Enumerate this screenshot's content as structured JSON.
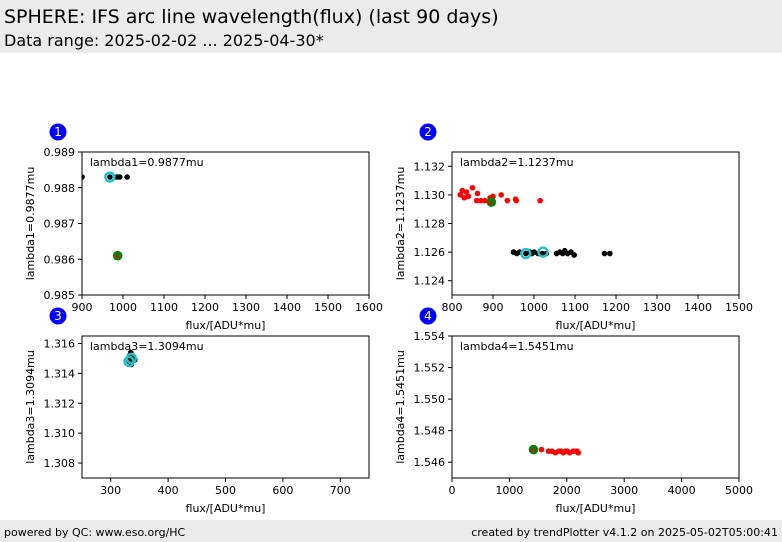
{
  "header": {
    "title": "SPHERE: IFS arc line wavelength(flux) (last 90 days)",
    "subtitle": "Data range: 2025-02-02 ... 2025-04-30*"
  },
  "footer": {
    "left": "powered by QC: www.eso.org/HC",
    "right": "created by trendPlotter v4.1.2 on 2025-05-02T05:00:41"
  },
  "colors": {
    "badge": "#0000ff",
    "black": "#000000",
    "red": "#ff0000",
    "cyan": "#20c0c8",
    "green": "#008000"
  },
  "chart_data": [
    {
      "type": "scatter",
      "badge": "1",
      "annotation": "lambda1=0.9877mu",
      "xlabel": "flux/[ADU*mu]",
      "ylabel": "lambda1=0.9877mu",
      "xlim": [
        900,
        1600
      ],
      "ylim": [
        0.985,
        0.989
      ],
      "xticks": [
        "900",
        "1000",
        "1100",
        "1200",
        "1300",
        "1400",
        "1500",
        "1600"
      ],
      "yticks": [
        "0.985",
        "0.986",
        "0.987",
        "0.988",
        "0.989"
      ],
      "series": [
        {
          "color": "black",
          "points": [
            [
              900,
              0.9883
            ],
            [
              968,
              0.9883
            ],
            [
              985,
              0.9883
            ],
            [
              992,
              0.9883
            ],
            [
              1010,
              0.9883
            ],
            [
              984,
              0.9861
            ]
          ]
        },
        {
          "color": "red",
          "points": [
            [
              985,
              0.9861
            ],
            [
              988,
              0.9861
            ]
          ]
        }
      ],
      "highlights": [
        {
          "style": "cyan-ring",
          "x": 968,
          "y": 0.9883
        },
        {
          "style": "green-dot",
          "x": 987,
          "y": 0.9861
        }
      ]
    },
    {
      "type": "scatter",
      "badge": "2",
      "annotation": "lambda2=1.1237mu",
      "xlabel": "flux/[ADU*mu]",
      "ylabel": "lambda2=1.1237mu",
      "xlim": [
        800,
        1500
      ],
      "ylim": [
        1.123,
        1.133
      ],
      "xticks": [
        "800",
        "900",
        "1000",
        "1100",
        "1200",
        "1300",
        "1400",
        "1500"
      ],
      "yticks": [
        "1.124",
        "1.126",
        "1.128",
        "1.130",
        "1.132"
      ],
      "series": [
        {
          "color": "red",
          "points": [
            [
              820,
              1.13
            ],
            [
              825,
              1.1303
            ],
            [
              830,
              1.1298
            ],
            [
              835,
              1.1302
            ],
            [
              840,
              1.1299
            ],
            [
              850,
              1.1305
            ],
            [
              860,
              1.1296
            ],
            [
              862,
              1.1301
            ],
            [
              870,
              1.1296
            ],
            [
              880,
              1.1296
            ],
            [
              893,
              1.1298
            ],
            [
              900,
              1.1299
            ],
            [
              920,
              1.13
            ],
            [
              935,
              1.1296
            ],
            [
              955,
              1.1297
            ],
            [
              957,
              1.1296
            ],
            [
              1015,
              1.1296
            ]
          ]
        },
        {
          "color": "black",
          "points": [
            [
              950,
              1.126
            ],
            [
              958,
              1.1259
            ],
            [
              965,
              1.126
            ],
            [
              980,
              1.1259
            ],
            [
              990,
              1.126
            ],
            [
              995,
              1.1259
            ],
            [
              1000,
              1.126
            ],
            [
              1010,
              1.1259
            ],
            [
              1020,
              1.1259
            ],
            [
              1030,
              1.1259
            ],
            [
              1055,
              1.1259
            ],
            [
              1063,
              1.126
            ],
            [
              1070,
              1.1259
            ],
            [
              1075,
              1.1261
            ],
            [
              1082,
              1.1259
            ],
            [
              1090,
              1.126
            ],
            [
              1098,
              1.1258
            ],
            [
              1172,
              1.1259
            ],
            [
              1185,
              1.1259
            ]
          ]
        }
      ],
      "highlights": [
        {
          "style": "cyan-ring",
          "x": 980,
          "y": 1.1259
        },
        {
          "style": "cyan-ring",
          "x": 1022,
          "y": 1.126
        },
        {
          "style": "green-dot",
          "x": 896,
          "y": 1.1295
        }
      ]
    },
    {
      "type": "scatter",
      "badge": "3",
      "annotation": "lambda3=1.3094mu",
      "xlabel": "flux/[ADU*mu]",
      "ylabel": "lambda3=1.3094mu",
      "xlim": [
        250,
        750
      ],
      "ylim": [
        1.307,
        1.3165
      ],
      "xticks": [
        "300",
        "400",
        "500",
        "600",
        "700"
      ],
      "yticks": [
        "1.308",
        "1.310",
        "1.312",
        "1.314",
        "1.316"
      ],
      "series": [
        {
          "color": "black",
          "points": [
            [
              335,
              1.3154
            ],
            [
              338,
              1.315
            ],
            [
              340,
              1.3149
            ],
            [
              333,
              1.3152
            ],
            [
              336,
              1.3146
            ],
            [
              330,
              1.315
            ],
            [
              342,
              1.3149
            ],
            [
              332,
              1.3148
            ]
          ]
        }
      ],
      "highlights": [
        {
          "style": "cyan-ring",
          "x": 336,
          "y": 1.315
        },
        {
          "style": "cyan-ring",
          "x": 332,
          "y": 1.3148
        }
      ]
    },
    {
      "type": "scatter",
      "badge": "4",
      "annotation": "lambda4=1.5451mu",
      "xlabel": "flux/[ADU*mu]",
      "ylabel": "lambda4=1.5451mu",
      "xlim": [
        0,
        5000
      ],
      "ylim": [
        1.545,
        1.554
      ],
      "xticks": [
        "0",
        "1000",
        "2000",
        "3000",
        "4000",
        "5000"
      ],
      "yticks": [
        "1.546",
        "1.548",
        "1.550",
        "1.552",
        "1.554"
      ],
      "series": [
        {
          "color": "red",
          "points": [
            [
              1400,
              1.5468
            ],
            [
              1560,
              1.5468
            ],
            [
              1680,
              1.5467
            ],
            [
              1740,
              1.5467
            ],
            [
              1800,
              1.5466
            ],
            [
              1860,
              1.5467
            ],
            [
              1900,
              1.5467
            ],
            [
              1940,
              1.5466
            ],
            [
              1980,
              1.5467
            ],
            [
              2010,
              1.5467
            ],
            [
              2050,
              1.5466
            ],
            [
              2110,
              1.5467
            ],
            [
              2160,
              1.5467
            ],
            [
              2180,
              1.5467
            ],
            [
              2200,
              1.5466
            ]
          ]
        }
      ],
      "highlights": [
        {
          "style": "green-dot",
          "x": 1420,
          "y": 1.5468
        }
      ]
    }
  ]
}
